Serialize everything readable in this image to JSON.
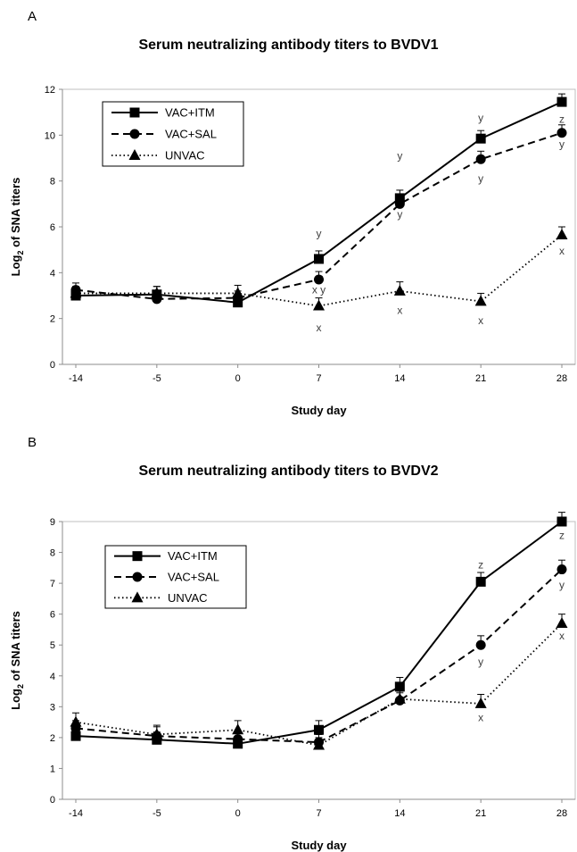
{
  "chart_data": [
    {
      "panel": "A",
      "type": "line",
      "title": "Serum neutralizing antibody titers to BVDV1",
      "xlabel": "Study day",
      "ylabel_main": "Log",
      "ylabel_sub": "2",
      "ylabel_rest": " of SNA titers",
      "categories": [
        "-14",
        "-5",
        "0",
        "7",
        "14",
        "21",
        "28"
      ],
      "x": [
        -14,
        -5,
        0,
        7,
        14,
        21,
        28
      ],
      "ylim": [
        0,
        12
      ],
      "yticks": [
        0,
        2,
        4,
        6,
        8,
        10,
        12
      ],
      "grid": false,
      "legend": "top-left",
      "series": [
        {
          "name": "VAC+ITM",
          "style": "solid",
          "marker": "square",
          "values": [
            3.0,
            3.05,
            2.7,
            4.6,
            7.25,
            9.85,
            11.45
          ],
          "err": [
            0.3,
            0.35,
            0.3,
            0.35,
            0.35,
            0.35,
            0.35
          ]
        },
        {
          "name": "VAC+SAL",
          "style": "dashed",
          "marker": "circle",
          "values": [
            3.25,
            2.85,
            2.9,
            3.7,
            7.0,
            8.95,
            10.1
          ],
          "err": [
            0.3,
            0.3,
            0.3,
            0.35,
            0.35,
            0.35,
            0.35
          ]
        },
        {
          "name": "UNVAC",
          "style": "dotted",
          "marker": "triangle",
          "values": [
            3.1,
            3.1,
            3.1,
            2.55,
            3.2,
            2.75,
            5.65
          ],
          "err": [
            0.3,
            0.3,
            0.35,
            0.35,
            0.4,
            0.35,
            0.35
          ]
        }
      ],
      "annotations": [
        {
          "x": 7,
          "y": 5.7,
          "text": "y"
        },
        {
          "x": 7,
          "y": 3.25,
          "text": "x y"
        },
        {
          "x": 7,
          "y": 1.6,
          "text": "x"
        },
        {
          "x": 14,
          "y": 9.1,
          "text": "y"
        },
        {
          "x": 14,
          "y": 6.55,
          "text": "y"
        },
        {
          "x": 14,
          "y": 2.35,
          "text": "x"
        },
        {
          "x": 21,
          "y": 10.75,
          "text": "y"
        },
        {
          "x": 21,
          "y": 8.1,
          "text": "y"
        },
        {
          "x": 21,
          "y": 1.9,
          "text": "x"
        },
        {
          "x": 28,
          "y": 10.7,
          "text": "z"
        },
        {
          "x": 28,
          "y": 9.6,
          "text": "y"
        },
        {
          "x": 28,
          "y": 4.95,
          "text": "x"
        }
      ]
    },
    {
      "panel": "B",
      "type": "line",
      "title": "Serum neutralizing antibody titers to BVDV2",
      "xlabel": "Study day",
      "ylabel_main": "Log",
      "ylabel_sub": "2",
      "ylabel_rest": " of SNA titers",
      "categories": [
        "-14",
        "-5",
        "0",
        "7",
        "14",
        "21",
        "28"
      ],
      "x": [
        -14,
        -5,
        0,
        7,
        14,
        21,
        28
      ],
      "ylim": [
        0,
        9
      ],
      "yticks": [
        0,
        1,
        2,
        3,
        4,
        5,
        6,
        7,
        8,
        9
      ],
      "grid": false,
      "legend": "top-left",
      "series": [
        {
          "name": "VAC+ITM",
          "style": "solid",
          "marker": "square",
          "values": [
            2.05,
            1.93,
            1.8,
            2.25,
            3.65,
            7.05,
            9.0
          ],
          "err": [
            0.25,
            0.25,
            0.2,
            0.3,
            0.3,
            0.3,
            0.3
          ]
        },
        {
          "name": "VAC+SAL",
          "style": "dashed",
          "marker": "circle",
          "values": [
            2.3,
            2.05,
            1.95,
            1.85,
            3.2,
            5.0,
            7.45
          ],
          "err": [
            0.25,
            0.3,
            0.25,
            0.25,
            0.25,
            0.3,
            0.3
          ]
        },
        {
          "name": "UNVAC",
          "style": "dotted",
          "marker": "triangle",
          "values": [
            2.5,
            2.1,
            2.25,
            1.75,
            3.25,
            3.1,
            5.7
          ],
          "err": [
            0.3,
            0.3,
            0.3,
            0.25,
            0.25,
            0.3,
            0.3
          ]
        }
      ],
      "annotations": [
        {
          "x": 21,
          "y": 7.6,
          "text": "z"
        },
        {
          "x": 21,
          "y": 4.45,
          "text": "y"
        },
        {
          "x": 21,
          "y": 2.65,
          "text": "x"
        },
        {
          "x": 28,
          "y": 8.55,
          "text": "z"
        },
        {
          "x": 28,
          "y": 6.95,
          "text": "y"
        },
        {
          "x": 28,
          "y": 5.3,
          "text": "x"
        }
      ]
    }
  ]
}
